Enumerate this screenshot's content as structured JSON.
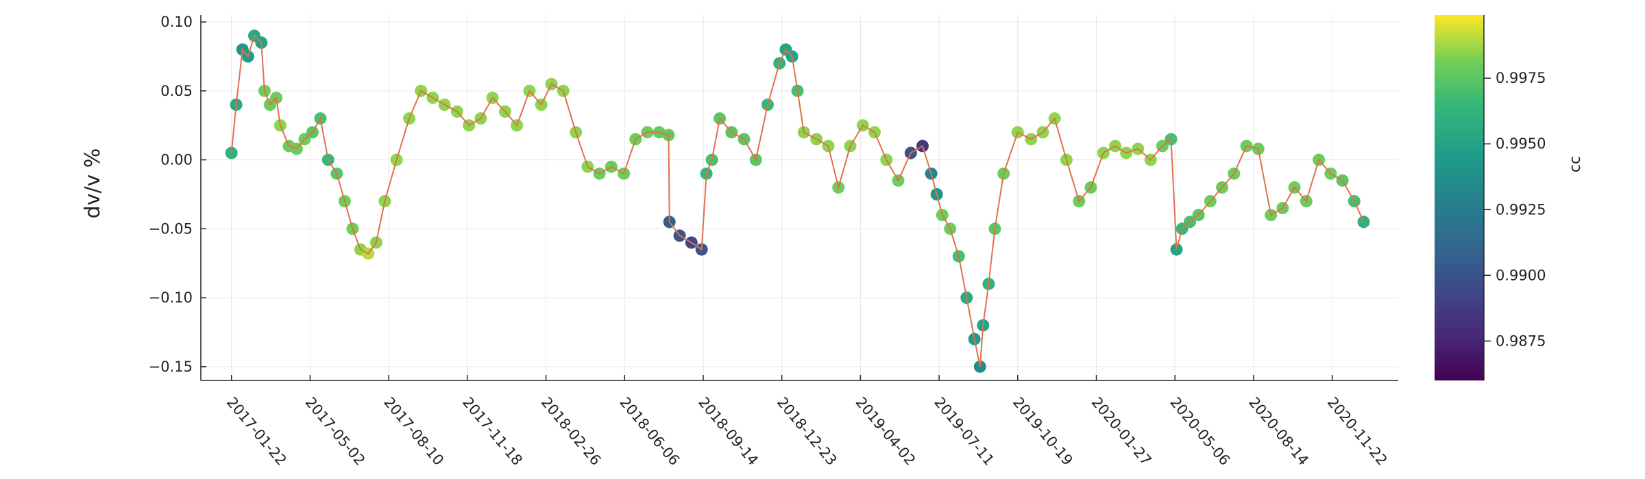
{
  "chart_data": {
    "type": "scatter",
    "title": "",
    "xlabel": "",
    "ylabel": "dv/v %",
    "x_ticks": [
      "2017-01-22",
      "2017-05-02",
      "2017-08-10",
      "2017-11-18",
      "2018-02-26",
      "2018-06-06",
      "2018-09-14",
      "2018-12-23",
      "2019-04-02",
      "2019-07-11",
      "2019-10-19",
      "2020-01-27",
      "2020-05-06",
      "2020-08-14",
      "2020-11-22"
    ],
    "y_ticks": [
      "0.10",
      "0.05",
      "0.00",
      "−0.05",
      "−0.10",
      "−0.15"
    ],
    "xlim": [
      "2016-12-14",
      "2021-02-14"
    ],
    "ylim": [
      -0.16,
      0.105
    ],
    "grid": true,
    "line_color": "#e0704a",
    "colorbar": {
      "label": "cc",
      "range": [
        0.986,
        0.9999
      ],
      "ticks": [
        "0.9875",
        "0.9900",
        "0.9925",
        "0.9950",
        "0.9975"
      ],
      "colormap": "viridis"
    },
    "series": [
      {
        "x": [
          "2017-01-22",
          "2017-01-28",
          "2017-02-05",
          "2017-02-12",
          "2017-02-20",
          "2017-03-01",
          "2017-03-05",
          "2017-03-12",
          "2017-03-20",
          "2017-03-25",
          "2017-04-05",
          "2017-04-15",
          "2017-04-25",
          "2017-05-05",
          "2017-05-15",
          "2017-05-25",
          "2017-06-05",
          "2017-06-15",
          "2017-06-25",
          "2017-07-05",
          "2017-07-15",
          "2017-07-25",
          "2017-08-05",
          "2017-08-20",
          "2017-09-05",
          "2017-09-20",
          "2017-10-05",
          "2017-10-20",
          "2017-11-05",
          "2017-11-20",
          "2017-12-05",
          "2017-12-20",
          "2018-01-05",
          "2018-01-20",
          "2018-02-05",
          "2018-02-20",
          "2018-03-05",
          "2018-03-20",
          "2018-04-05",
          "2018-04-20",
          "2018-05-05",
          "2018-05-20",
          "2018-06-05",
          "2018-06-20",
          "2018-07-05",
          "2018-07-20",
          "2018-08-01",
          "2018-08-02",
          "2018-08-15",
          "2018-08-30",
          "2018-09-12",
          "2018-09-18",
          "2018-09-25",
          "2018-10-05",
          "2018-10-20",
          "2018-11-05",
          "2018-11-20",
          "2018-12-05",
          "2018-12-20",
          "2018-12-28",
          "2019-01-05",
          "2019-01-12",
          "2019-01-20",
          "2019-02-05",
          "2019-02-20",
          "2019-03-05",
          "2019-03-20",
          "2019-04-05",
          "2019-04-20",
          "2019-05-05",
          "2019-05-20",
          "2019-06-05",
          "2019-06-20",
          "2019-07-01",
          "2019-07-08",
          "2019-07-15",
          "2019-07-25",
          "2019-08-05",
          "2019-08-15",
          "2019-08-25",
          "2019-09-01",
          "2019-09-05",
          "2019-09-12",
          "2019-09-20",
          "2019-10-01",
          "2019-10-19",
          "2019-11-05",
          "2019-11-20",
          "2019-12-05",
          "2019-12-20",
          "2020-01-05",
          "2020-01-20",
          "2020-02-05",
          "2020-02-20",
          "2020-03-05",
          "2020-03-20",
          "2020-04-05",
          "2020-04-20",
          "2020-05-01",
          "2020-05-08",
          "2020-05-15",
          "2020-05-25",
          "2020-06-05",
          "2020-06-20",
          "2020-07-05",
          "2020-07-20",
          "2020-08-05",
          "2020-08-20",
          "2020-09-05",
          "2020-09-20",
          "2020-10-05",
          "2020-10-20",
          "2020-11-05",
          "2020-11-20",
          "2020-12-05",
          "2020-12-20",
          "2021-01-01"
        ],
        "y": [
          0.005,
          0.04,
          0.08,
          0.075,
          0.09,
          0.085,
          0.05,
          0.04,
          0.045,
          0.025,
          0.01,
          0.008,
          0.015,
          0.02,
          0.03,
          0.0,
          -0.01,
          -0.03,
          -0.05,
          -0.065,
          -0.068,
          -0.06,
          -0.03,
          0.0,
          0.03,
          0.05,
          0.045,
          0.04,
          0.035,
          0.025,
          0.03,
          0.045,
          0.035,
          0.025,
          0.05,
          0.04,
          0.055,
          0.05,
          0.02,
          -0.005,
          -0.01,
          -0.005,
          -0.01,
          0.015,
          0.02,
          0.02,
          0.018,
          -0.045,
          -0.055,
          -0.06,
          -0.065,
          -0.01,
          0.0,
          0.03,
          0.02,
          0.015,
          0.0,
          0.04,
          0.07,
          0.08,
          0.075,
          0.05,
          0.02,
          0.015,
          0.01,
          -0.02,
          0.01,
          0.025,
          0.02,
          0.0,
          -0.015,
          0.005,
          0.01,
          -0.01,
          -0.025,
          -0.04,
          -0.05,
          -0.07,
          -0.1,
          -0.13,
          -0.15,
          -0.12,
          -0.09,
          -0.05,
          -0.01,
          0.02,
          0.015,
          0.02,
          0.03,
          0.0,
          -0.03,
          -0.02,
          0.005,
          0.01,
          0.005,
          0.008,
          0.0,
          0.01,
          0.015,
          -0.065,
          -0.05,
          -0.045,
          -0.04,
          -0.03,
          -0.02,
          -0.01,
          0.01,
          0.008,
          -0.04,
          -0.035,
          -0.02,
          -0.03,
          0.0,
          -0.01,
          -0.015,
          -0.03,
          -0.045
        ],
        "cc": [
          0.996,
          0.9955,
          0.994,
          0.9945,
          0.9955,
          0.995,
          0.998,
          0.998,
          0.998,
          0.9985,
          0.998,
          0.998,
          0.998,
          0.9975,
          0.997,
          0.9965,
          0.9975,
          0.998,
          0.998,
          0.9985,
          0.999,
          0.9985,
          0.9985,
          0.9985,
          0.9985,
          0.9985,
          0.9985,
          0.9985,
          0.9985,
          0.9985,
          0.9985,
          0.9985,
          0.9985,
          0.9985,
          0.9985,
          0.9985,
          0.9985,
          0.9985,
          0.9985,
          0.9985,
          0.998,
          0.998,
          0.998,
          0.998,
          0.998,
          0.9978,
          0.9978,
          0.9905,
          0.99,
          0.9895,
          0.99,
          0.9965,
          0.997,
          0.9975,
          0.9975,
          0.9975,
          0.9975,
          0.9965,
          0.996,
          0.995,
          0.995,
          0.997,
          0.9985,
          0.9985,
          0.9985,
          0.998,
          0.9985,
          0.9985,
          0.9985,
          0.9985,
          0.998,
          0.99,
          0.9885,
          0.993,
          0.994,
          0.998,
          0.998,
          0.997,
          0.9955,
          0.9945,
          0.9935,
          0.995,
          0.996,
          0.9975,
          0.998,
          0.9985,
          0.9985,
          0.9985,
          0.9985,
          0.9985,
          0.998,
          0.998,
          0.9985,
          0.9985,
          0.9985,
          0.9985,
          0.9985,
          0.998,
          0.997,
          0.995,
          0.9965,
          0.997,
          0.9975,
          0.998,
          0.998,
          0.998,
          0.998,
          0.998,
          0.998,
          0.998,
          0.998,
          0.998,
          0.998,
          0.998,
          0.9975,
          0.997,
          0.996
        ]
      }
    ]
  }
}
